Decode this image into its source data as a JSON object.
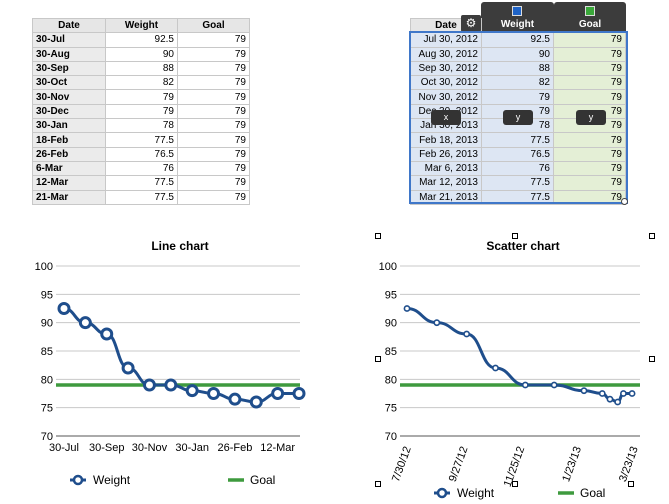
{
  "colors": {
    "weight": "#1f4e8c",
    "goal": "#3e9a3e",
    "selection": "#3f77c9"
  },
  "left_table": {
    "headers": [
      "Date",
      "Weight",
      "Goal"
    ],
    "rows": [
      [
        "30-Jul",
        "92.5",
        "79"
      ],
      [
        "30-Aug",
        "90",
        "79"
      ],
      [
        "30-Sep",
        "88",
        "79"
      ],
      [
        "30-Oct",
        "82",
        "79"
      ],
      [
        "30-Nov",
        "79",
        "79"
      ],
      [
        "30-Dec",
        "79",
        "79"
      ],
      [
        "30-Jan",
        "78",
        "79"
      ],
      [
        "18-Feb",
        "77.5",
        "79"
      ],
      [
        "26-Feb",
        "76.5",
        "79"
      ],
      [
        "6-Mar",
        "76",
        "79"
      ],
      [
        "12-Mar",
        "77.5",
        "79"
      ],
      [
        "21-Mar",
        "77.5",
        "79"
      ]
    ]
  },
  "right_table": {
    "headers": [
      "Date",
      "Weight",
      "Goal"
    ],
    "gear_icon": "gear-icon",
    "rows": [
      [
        "Jul 30, 2012",
        "92.5",
        "79"
      ],
      [
        "Aug 30, 2012",
        "90",
        "79"
      ],
      [
        "Sep 30, 2012",
        "88",
        "79"
      ],
      [
        "Oct 30, 2012",
        "82",
        "79"
      ],
      [
        "Nov 30, 2012",
        "79",
        "79"
      ],
      [
        "Dec 30, 2012",
        "79",
        "79"
      ],
      [
        "Jan 30, 2013",
        "78",
        "79"
      ],
      [
        "Feb 18, 2013",
        "77.5",
        "79"
      ],
      [
        "Feb 26, 2013",
        "76.5",
        "79"
      ],
      [
        "Mar 6, 2013",
        "76",
        "79"
      ],
      [
        "Mar 12, 2013",
        "77.5",
        "79"
      ],
      [
        "Mar 21, 2013",
        "77.5",
        "79"
      ]
    ],
    "axis_tags": [
      "x",
      "y",
      "y"
    ]
  },
  "chart_data": [
    {
      "type": "line",
      "title": "Line chart",
      "categories": [
        "30-Jul",
        "30-Aug",
        "30-Sep",
        "30-Oct",
        "30-Nov",
        "30-Dec",
        "30-Jan",
        "18-Feb",
        "26-Feb",
        "6-Mar",
        "12-Mar",
        "21-Mar"
      ],
      "tick_labels": [
        "30-Jul",
        "30-Sep",
        "30-Nov",
        "30-Jan",
        "26-Feb",
        "12-Mar"
      ],
      "series": [
        {
          "name": "Weight",
          "values": [
            92.5,
            90,
            88,
            82,
            79,
            79,
            78,
            77.5,
            76.5,
            76,
            77.5,
            77.5
          ]
        },
        {
          "name": "Goal",
          "values": [
            79,
            79,
            79,
            79,
            79,
            79,
            79,
            79,
            79,
            79,
            79,
            79
          ]
        }
      ],
      "yticks": [
        "100",
        "95",
        "90",
        "85",
        "80",
        "75",
        "70"
      ],
      "ylim": [
        70,
        100
      ],
      "grid": true,
      "legend": "bottom"
    },
    {
      "type": "scatter",
      "title": "Scatter chart",
      "x": [
        "2012-07-30",
        "2012-08-30",
        "2012-09-30",
        "2012-10-30",
        "2012-11-30",
        "2012-12-30",
        "2013-01-30",
        "2013-02-18",
        "2013-02-26",
        "2013-03-06",
        "2013-03-12",
        "2013-03-21"
      ],
      "series": [
        {
          "name": "Weight",
          "values": [
            92.5,
            90,
            88,
            82,
            79,
            79,
            78,
            77.5,
            76.5,
            76,
            77.5,
            77.5
          ]
        },
        {
          "name": "Goal",
          "values": [
            79,
            79,
            79,
            79,
            79,
            79,
            79,
            79,
            79,
            79,
            79,
            79
          ]
        }
      ],
      "xticks": [
        "7/30/12",
        "9/27/12",
        "11/25/12",
        "1/23/13",
        "3/23/13"
      ],
      "xtick_dates": [
        "2012-07-30",
        "2012-09-27",
        "2012-11-25",
        "2013-01-23",
        "2013-03-23"
      ],
      "yticks": [
        "100",
        "95",
        "90",
        "85",
        "80",
        "75",
        "70"
      ],
      "ylim": [
        70,
        100
      ],
      "grid": true,
      "legend": "bottom"
    }
  ]
}
